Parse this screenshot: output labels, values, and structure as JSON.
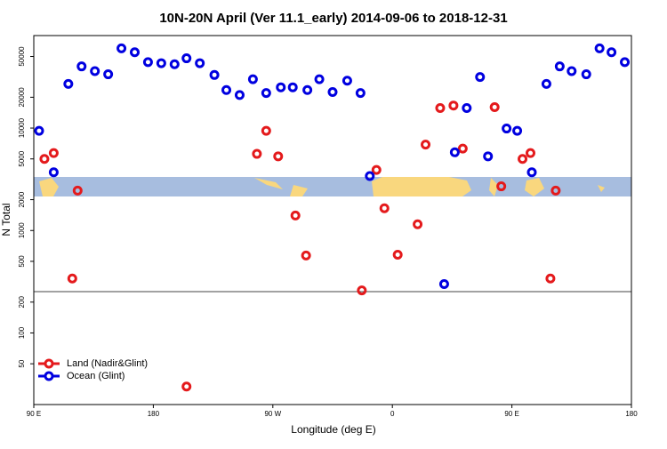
{
  "chart_data": {
    "type": "scatter",
    "title": "10N-20N April (Ver 11.1_early)   2014-09-06 to 2018-12-31",
    "x_label": "Longitude (deg E)",
    "y_label": "N Total",
    "xlim": [
      90,
      540
    ],
    "xticks": [
      {
        "value": 90,
        "label": "90 E"
      },
      {
        "value": 180,
        "label": "180"
      },
      {
        "value": 270,
        "label": "90 W"
      },
      {
        "value": 360,
        "label": "0"
      },
      {
        "value": 450,
        "label": "90 E"
      },
      {
        "value": 540,
        "label": "180"
      }
    ],
    "ylim": [
      20,
      80000
    ],
    "ylog": true,
    "yticks": [
      50,
      100,
      200,
      500,
      1000,
      2000,
      5000,
      10000,
      20000,
      50000
    ],
    "legend": "lower left",
    "series": [
      {
        "name": "Land (Nadir&Glint)",
        "color": "#e41a1c",
        "x": [
          98,
          105,
          123,
          119,
          205,
          258,
          265,
          274,
          287,
          295,
          337,
          348,
          354,
          364,
          379,
          385,
          396,
          406,
          413,
          437,
          442,
          458,
          464,
          483,
          479
        ],
        "values": [
          5000,
          5700,
          2450,
          340,
          30,
          5600,
          9400,
          5300,
          1400,
          570,
          260,
          3900,
          1650,
          580,
          1150,
          6900,
          15700,
          16600,
          6300,
          16000,
          2700,
          5000,
          5700,
          2450,
          340
        ]
      },
      {
        "name": "Ocean (Glint)",
        "color": "#0000e0",
        "x": [
          94,
          105,
          116,
          126,
          136,
          146,
          156,
          166,
          176,
          186,
          196,
          205,
          215,
          226,
          235,
          245,
          255,
          265,
          276,
          285,
          296,
          305,
          315,
          326,
          336,
          343,
          399,
          407,
          416,
          426,
          432,
          446,
          454,
          465,
          476,
          486,
          495,
          506,
          516,
          525,
          535
        ],
        "values": [
          9400,
          3700,
          27000,
          40000,
          36000,
          33500,
          60000,
          55000,
          44000,
          43000,
          42000,
          48000,
          43000,
          33000,
          23500,
          21000,
          30000,
          22000,
          25000,
          25000,
          23500,
          30000,
          22500,
          29000,
          22000,
          3400,
          300,
          5800,
          15700,
          31500,
          5300,
          9900,
          9400,
          3700,
          27000,
          40000,
          36000,
          33500,
          60000,
          55000,
          44000
        ]
      }
    ]
  }
}
